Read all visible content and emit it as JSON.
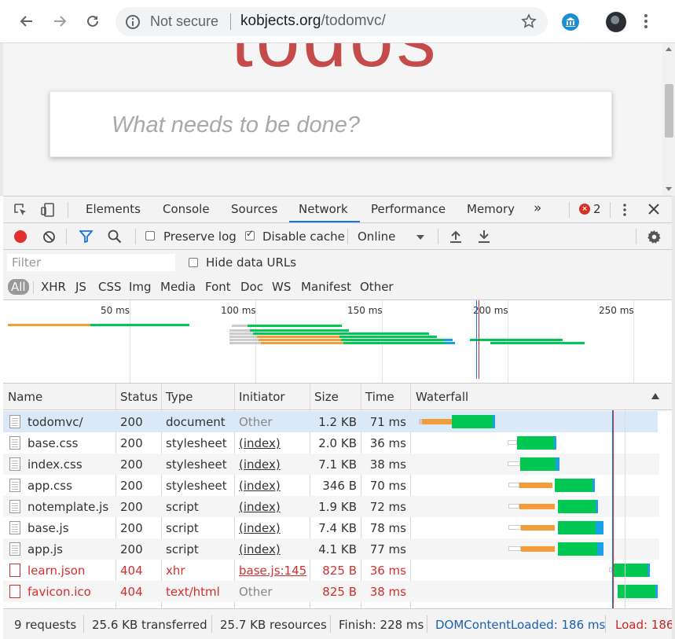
{
  "browser": {
    "security_label": "Not secure",
    "url_domain": "kobjects.org",
    "url_path": "/todomvc/"
  },
  "page": {
    "heading": "todos",
    "new_todo_placeholder": "What needs to be done?"
  },
  "devtools": {
    "tabs": [
      "Elements",
      "Console",
      "Sources",
      "Network",
      "Performance",
      "Memory"
    ],
    "active_tab": "Network",
    "more_tabs": "»",
    "error_count": "2",
    "preserve_log": {
      "label": "Preserve log",
      "checked": false
    },
    "disable_cache": {
      "label": "Disable cache",
      "checked": true
    },
    "throttling": "Online",
    "filter_placeholder": "Filter",
    "hide_data_urls": {
      "label": "Hide data URLs",
      "checked": false
    },
    "types": [
      "All",
      "XHR",
      "JS",
      "CSS",
      "Img",
      "Media",
      "Font",
      "Doc",
      "WS",
      "Manifest",
      "Other"
    ],
    "active_type": "All",
    "overview_ticks": [
      "50 ms",
      "100 ms",
      "150 ms",
      "200 ms",
      "250 ms"
    ],
    "columns": {
      "name": "Name",
      "status": "Status",
      "type": "Type",
      "initiator": "Initiator",
      "size": "Size",
      "time": "Time",
      "waterfall": "Waterfall"
    },
    "requests": [
      {
        "name": "todomvc/",
        "status": "200",
        "type": "document",
        "initiator": "Other",
        "size": "1.2 KB",
        "time": "71 ms"
      },
      {
        "name": "base.css",
        "status": "200",
        "type": "stylesheet",
        "initiator": "(index)",
        "size": "2.0 KB",
        "time": "36 ms"
      },
      {
        "name": "index.css",
        "status": "200",
        "type": "stylesheet",
        "initiator": "(index)",
        "size": "7.1 KB",
        "time": "38 ms"
      },
      {
        "name": "app.css",
        "status": "200",
        "type": "stylesheet",
        "initiator": "(index)",
        "size": "346 B",
        "time": "70 ms"
      },
      {
        "name": "notemplate.js",
        "status": "200",
        "type": "script",
        "initiator": "(index)",
        "size": "1.9 KB",
        "time": "72 ms"
      },
      {
        "name": "base.js",
        "status": "200",
        "type": "script",
        "initiator": "(index)",
        "size": "7.4 KB",
        "time": "78 ms"
      },
      {
        "name": "app.js",
        "status": "200",
        "type": "script",
        "initiator": "(index)",
        "size": "4.1 KB",
        "time": "77 ms"
      },
      {
        "name": "learn.json",
        "status": "404",
        "type": "xhr",
        "initiator": "base.js:145",
        "size": "825 B",
        "time": "36 ms"
      },
      {
        "name": "favicon.ico",
        "status": "404",
        "type": "text/html",
        "initiator": "Other",
        "size": "825 B",
        "time": "38 ms"
      }
    ],
    "summary": {
      "requests": "9 requests",
      "transferred": "25.6 KB transferred",
      "resources": "25.7 KB resources",
      "finish": "Finish: 228 ms",
      "dom_content_loaded": "DOMContentLoaded: 186 ms",
      "load": "Load: 186"
    }
  },
  "colors": {
    "waiting": "#00c853",
    "stalled": "#f39c3a",
    "download": "#1aa0e6",
    "error": "#d32f2f",
    "link_blue": "#1a73e8"
  }
}
